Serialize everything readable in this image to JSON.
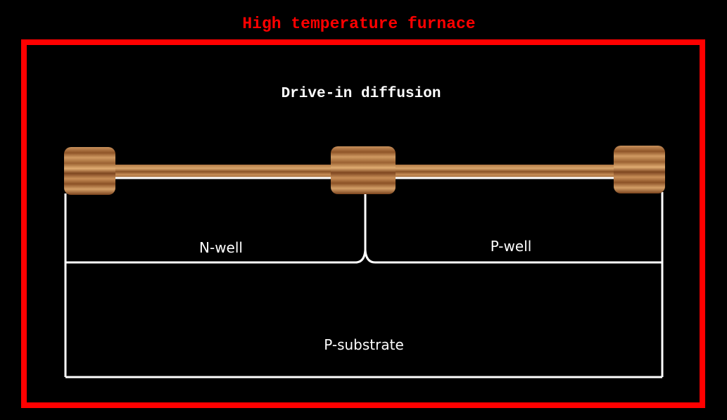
{
  "furnace": {
    "title": "High temperature furnace",
    "border_color": "#ff0000"
  },
  "process_step": {
    "title": "Drive-in diffusion"
  },
  "regions": {
    "n_well": "N-well",
    "p_well": "P-well",
    "substrate": "P-substrate"
  },
  "oxide": {
    "color_light": "#c58c5a",
    "color_dark": "#8a5226",
    "blocks": [
      "left-field-oxide",
      "center-field-oxide",
      "right-field-oxide"
    ]
  },
  "colors": {
    "background": "#000000",
    "outline": "#ffffff"
  }
}
